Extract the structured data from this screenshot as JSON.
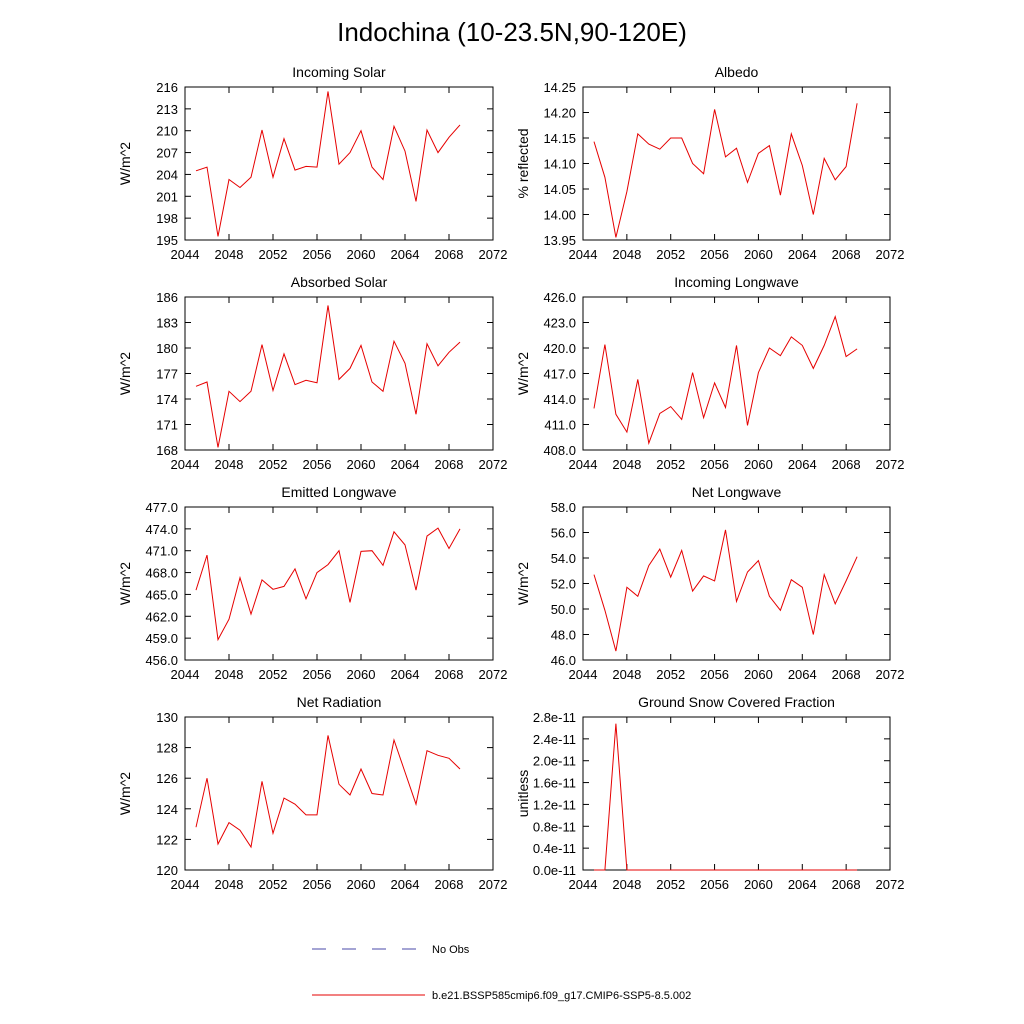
{
  "figure": {
    "title": "Indochina (10-23.5N,90-120E)"
  },
  "legend": {
    "obs_label": "No Obs",
    "model_label": "b.e21.BSSP585cmip6.f09_g17.CMIP6-SSP5-8.5.002",
    "obs_color": "#4a4aaa",
    "model_color": "#e60000"
  },
  "chart_data": [
    {
      "type": "line",
      "title": "Incoming Solar",
      "ylabel": "W/m^2",
      "xlim": [
        2044,
        2072
      ],
      "ylim": [
        195,
        216
      ],
      "xticks": [
        2044,
        2048,
        2052,
        2056,
        2060,
        2064,
        2068,
        2072
      ],
      "xtick_labels": [
        "2044",
        "2048",
        "2052",
        "2056",
        "2060",
        "2064",
        "2068",
        "2072"
      ],
      "yticks": [
        195,
        198,
        201,
        204,
        207,
        210,
        213,
        216
      ],
      "ytick_labels": [
        "195",
        "198",
        "201",
        "204",
        "207",
        "210",
        "213",
        "216"
      ],
      "x": [
        2045,
        2046,
        2047,
        2048,
        2049,
        2050,
        2051,
        2052,
        2053,
        2054,
        2055,
        2056,
        2057,
        2058,
        2059,
        2060,
        2061,
        2062,
        2063,
        2064,
        2065,
        2066,
        2067,
        2068,
        2069
      ],
      "values": [
        204.5,
        205.0,
        195.5,
        203.3,
        202.2,
        203.6,
        210.1,
        203.6,
        208.9,
        204.6,
        205.1,
        205.0,
        215.4,
        205.4,
        207.0,
        210.0,
        205.0,
        203.3,
        210.6,
        207.2,
        200.3,
        210.1,
        207.0,
        209.1,
        210.8
      ]
    },
    {
      "type": "line",
      "title": "Albedo",
      "ylabel": "% reflected",
      "xlim": [
        2044,
        2072
      ],
      "ylim": [
        13.95,
        14.25
      ],
      "xticks": [
        2044,
        2048,
        2052,
        2056,
        2060,
        2064,
        2068,
        2072
      ],
      "xtick_labels": [
        "2044",
        "2048",
        "2052",
        "2056",
        "2060",
        "2064",
        "2068",
        "2072"
      ],
      "yticks": [
        13.95,
        14.0,
        14.05,
        14.1,
        14.15,
        14.2,
        14.25
      ],
      "ytick_labels": [
        "13.95",
        "14.00",
        "14.05",
        "14.10",
        "14.15",
        "14.20",
        "14.25"
      ],
      "x": [
        2045,
        2046,
        2047,
        2048,
        2049,
        2050,
        2051,
        2052,
        2053,
        2054,
        2055,
        2056,
        2057,
        2058,
        2059,
        2060,
        2061,
        2062,
        2063,
        2064,
        2065,
        2066,
        2067,
        2068,
        2069
      ],
      "values": [
        14.143,
        14.073,
        13.955,
        14.045,
        14.158,
        14.138,
        14.128,
        14.15,
        14.15,
        14.1,
        14.08,
        14.206,
        14.113,
        14.13,
        14.063,
        14.12,
        14.135,
        14.038,
        14.158,
        14.096,
        14.0,
        14.11,
        14.068,
        14.094,
        14.218
      ]
    },
    {
      "type": "line",
      "title": "Absorbed Solar",
      "ylabel": "W/m^2",
      "xlim": [
        2044,
        2072
      ],
      "ylim": [
        168,
        186
      ],
      "xticks": [
        2044,
        2048,
        2052,
        2056,
        2060,
        2064,
        2068,
        2072
      ],
      "xtick_labels": [
        "2044",
        "2048",
        "2052",
        "2056",
        "2060",
        "2064",
        "2068",
        "2072"
      ],
      "yticks": [
        168,
        171,
        174,
        177,
        180,
        183,
        186
      ],
      "ytick_labels": [
        "168",
        "171",
        "174",
        "177",
        "180",
        "183",
        "186"
      ],
      "x": [
        2045,
        2046,
        2047,
        2048,
        2049,
        2050,
        2051,
        2052,
        2053,
        2054,
        2055,
        2056,
        2057,
        2058,
        2059,
        2060,
        2061,
        2062,
        2063,
        2064,
        2065,
        2066,
        2067,
        2068,
        2069
      ],
      "values": [
        175.5,
        176.0,
        168.3,
        174.9,
        173.7,
        174.9,
        180.4,
        175.0,
        179.3,
        175.7,
        176.2,
        175.9,
        185.0,
        176.3,
        177.6,
        180.3,
        176.0,
        174.9,
        180.8,
        178.2,
        172.2,
        180.5,
        177.9,
        179.5,
        180.7
      ]
    },
    {
      "type": "line",
      "title": "Incoming Longwave",
      "ylabel": "W/m^2",
      "xlim": [
        2044,
        2072
      ],
      "ylim": [
        408.0,
        426.0
      ],
      "xticks": [
        2044,
        2048,
        2052,
        2056,
        2060,
        2064,
        2068,
        2072
      ],
      "xtick_labels": [
        "2044",
        "2048",
        "2052",
        "2056",
        "2060",
        "2064",
        "2068",
        "2072"
      ],
      "yticks": [
        408.0,
        411.0,
        414.0,
        417.0,
        420.0,
        423.0,
        426.0
      ],
      "ytick_labels": [
        "408.0",
        "411.0",
        "414.0",
        "417.0",
        "420.0",
        "423.0",
        "426.0"
      ],
      "x": [
        2045,
        2046,
        2047,
        2048,
        2049,
        2050,
        2051,
        2052,
        2053,
        2054,
        2055,
        2056,
        2057,
        2058,
        2059,
        2060,
        2061,
        2062,
        2063,
        2064,
        2065,
        2066,
        2067,
        2068,
        2069
      ],
      "values": [
        412.9,
        420.4,
        412.2,
        410.1,
        416.3,
        408.8,
        412.3,
        413.1,
        411.6,
        417.1,
        411.8,
        415.9,
        413.0,
        420.3,
        410.9,
        417.1,
        420.0,
        419.1,
        421.3,
        420.3,
        417.6,
        420.3,
        423.7,
        419.0,
        419.9
      ]
    },
    {
      "type": "line",
      "title": "Emitted Longwave",
      "ylabel": "W/m^2",
      "xlim": [
        2044,
        2072
      ],
      "ylim": [
        456.0,
        477.0
      ],
      "xticks": [
        2044,
        2048,
        2052,
        2056,
        2060,
        2064,
        2068,
        2072
      ],
      "xtick_labels": [
        "2044",
        "2048",
        "2052",
        "2056",
        "2060",
        "2064",
        "2068",
        "2072"
      ],
      "yticks": [
        456.0,
        459.0,
        462.0,
        465.0,
        468.0,
        471.0,
        474.0,
        477.0
      ],
      "ytick_labels": [
        "456.0",
        "459.0",
        "462.0",
        "465.0",
        "468.0",
        "471.0",
        "474.0",
        "477.0"
      ],
      "x": [
        2045,
        2046,
        2047,
        2048,
        2049,
        2050,
        2051,
        2052,
        2053,
        2054,
        2055,
        2056,
        2057,
        2058,
        2059,
        2060,
        2061,
        2062,
        2063,
        2064,
        2065,
        2066,
        2067,
        2068,
        2069
      ],
      "values": [
        465.6,
        470.4,
        458.8,
        461.6,
        467.3,
        462.3,
        467.0,
        465.7,
        466.1,
        468.5,
        464.4,
        468.0,
        469.1,
        471.0,
        463.9,
        470.9,
        471.0,
        469.0,
        473.6,
        471.8,
        465.6,
        473.0,
        474.1,
        471.3,
        474.0
      ]
    },
    {
      "type": "line",
      "title": "Net Longwave",
      "ylabel": "W/m^2",
      "xlim": [
        2044,
        2072
      ],
      "ylim": [
        46.0,
        58.0
      ],
      "xticks": [
        2044,
        2048,
        2052,
        2056,
        2060,
        2064,
        2068,
        2072
      ],
      "xtick_labels": [
        "2044",
        "2048",
        "2052",
        "2056",
        "2060",
        "2064",
        "2068",
        "2072"
      ],
      "yticks": [
        46.0,
        48.0,
        50.0,
        52.0,
        54.0,
        56.0,
        58.0
      ],
      "ytick_labels": [
        "46.0",
        "48.0",
        "50.0",
        "52.0",
        "54.0",
        "56.0",
        "58.0"
      ],
      "x": [
        2045,
        2046,
        2047,
        2048,
        2049,
        2050,
        2051,
        2052,
        2053,
        2054,
        2055,
        2056,
        2057,
        2058,
        2059,
        2060,
        2061,
        2062,
        2063,
        2064,
        2065,
        2066,
        2067,
        2068,
        2069
      ],
      "values": [
        52.7,
        49.9,
        46.7,
        51.7,
        51.0,
        53.4,
        54.7,
        52.5,
        54.6,
        51.4,
        52.6,
        52.2,
        56.2,
        50.6,
        52.9,
        53.8,
        51.0,
        49.9,
        52.3,
        51.7,
        48.0,
        52.7,
        50.4,
        52.2,
        54.1
      ]
    },
    {
      "type": "line",
      "title": "Net Radiation",
      "ylabel": "W/m^2",
      "xlim": [
        2044,
        2072
      ],
      "ylim": [
        120,
        130
      ],
      "xticks": [
        2044,
        2048,
        2052,
        2056,
        2060,
        2064,
        2068,
        2072
      ],
      "xtick_labels": [
        "2044",
        "2048",
        "2052",
        "2056",
        "2060",
        "2064",
        "2068",
        "2072"
      ],
      "yticks": [
        120,
        122,
        124,
        126,
        128,
        130
      ],
      "ytick_labels": [
        "120",
        "122",
        "124",
        "126",
        "128",
        "130"
      ],
      "x": [
        2045,
        2046,
        2047,
        2048,
        2049,
        2050,
        2051,
        2052,
        2053,
        2054,
        2055,
        2056,
        2057,
        2058,
        2059,
        2060,
        2061,
        2062,
        2063,
        2064,
        2065,
        2066,
        2067,
        2068,
        2069
      ],
      "values": [
        122.8,
        126.0,
        121.7,
        123.1,
        122.6,
        121.5,
        125.8,
        122.4,
        124.7,
        124.3,
        123.6,
        123.6,
        128.8,
        125.6,
        124.9,
        126.6,
        125.0,
        124.9,
        128.5,
        126.4,
        124.3,
        127.8,
        127.5,
        127.3,
        126.6
      ]
    },
    {
      "type": "line",
      "title": "Ground Snow Covered Fraction",
      "ylabel": "unitless",
      "xlim": [
        2044,
        2072
      ],
      "ylim": [
        0.0,
        2.8e-11
      ],
      "xticks": [
        2044,
        2048,
        2052,
        2056,
        2060,
        2064,
        2068,
        2072
      ],
      "xtick_labels": [
        "2044",
        "2048",
        "2052",
        "2056",
        "2060",
        "2064",
        "2068",
        "2072"
      ],
      "yticks": [
        0.0,
        4e-12,
        8e-12,
        1.2e-11,
        1.6e-11,
        2e-11,
        2.4e-11,
        2.8e-11
      ],
      "ytick_labels": [
        "0.0e-11",
        "0.4e-11",
        "0.8e-11",
        "1.2e-11",
        "1.6e-11",
        "2.0e-11",
        "2.4e-11",
        "2.8e-11"
      ],
      "x": [
        2045,
        2046,
        2047,
        2048,
        2049,
        2050,
        2051,
        2052,
        2053,
        2054,
        2055,
        2056,
        2057,
        2058,
        2059,
        2060,
        2061,
        2062,
        2063,
        2064,
        2065,
        2066,
        2067,
        2068,
        2069
      ],
      "values": [
        0,
        0,
        2.68e-11,
        0,
        0,
        0,
        0,
        0,
        0,
        0,
        0,
        0,
        0,
        0,
        0,
        0,
        0,
        0,
        0,
        0,
        0,
        0,
        0,
        0,
        0
      ]
    }
  ]
}
